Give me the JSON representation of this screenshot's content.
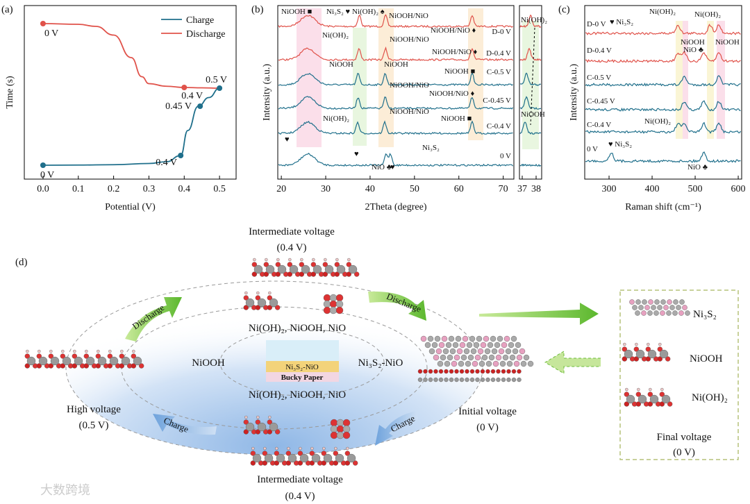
{
  "chart_data": [
    {
      "type": "line",
      "panel_label": "(a)",
      "x_label": "Potential (V)",
      "y_label": "Time (s)",
      "xlim": [
        -0.053,
        0.547
      ],
      "xticks": [
        {
          "value": 0,
          "label": "0.0"
        },
        0.1,
        0.2,
        0.3,
        0.4,
        0.5
      ],
      "ylim": [
        0,
        10
      ],
      "legend": "upper right",
      "series": [
        {
          "name": "Charge",
          "color": "#1f6f8b",
          "x": [
            0,
            0.1,
            0.2,
            0.3,
            0.35,
            0.39,
            0.41,
            0.44,
            0.47,
            0.5
          ],
          "values": [
            0.8,
            0.81,
            0.83,
            0.9,
            1.0,
            1.36,
            2.8,
            4.2,
            4.7,
            5.24
          ]
        },
        {
          "name": "Discharge",
          "color": "#e0524a",
          "x": [
            0,
            0.1,
            0.15,
            0.2,
            0.25,
            0.28,
            0.3,
            0.35,
            0.4,
            0.45,
            0.5
          ],
          "values": [
            8.96,
            8.92,
            8.8,
            8.3,
            7.0,
            5.9,
            5.5,
            5.35,
            5.28,
            5.26,
            5.24
          ]
        }
      ],
      "annotations": [
        {
          "text": "0 V",
          "x": 0,
          "y": 8.96,
          "series": 1
        },
        {
          "text": "0.4 V",
          "x": 0.4,
          "y": 5.28,
          "series": 1
        },
        {
          "text": "0.5 V",
          "x": 0.5,
          "y": 5.24,
          "series": 0
        },
        {
          "text": "0.45 V",
          "x": 0.445,
          "y": 4.2,
          "series": 0
        },
        {
          "text": "0.4 V",
          "x": 0.39,
          "y": 1.36,
          "series": 0
        },
        {
          "text": "0 V",
          "x": 0,
          "y": 0.8,
          "series": 0
        }
      ]
    },
    {
      "type": "spectra",
      "panel_label": "(b)",
      "x_label": "2Theta (degree)",
      "y_label": "Intensity (a.u.)",
      "xlim": [
        19.2,
        72.4
      ],
      "xticks": [
        20,
        30,
        40,
        50,
        60,
        70
      ],
      "inset_xlim": [
        36.8,
        38.4
      ],
      "inset_xticks": [
        37,
        38
      ],
      "traces": [
        {
          "name": "D-0 V",
          "color": "#e0524a",
          "peaks": [
            26,
            37.6,
            43.5,
            63
          ]
        },
        {
          "name": "D-0.4 V",
          "color": "#e0524a",
          "peaks": [
            26,
            37.5,
            43.5,
            63
          ]
        },
        {
          "name": "C-0.5 V",
          "color": "#1f6f8b",
          "peaks": [
            26,
            37.3,
            43.4,
            63
          ]
        },
        {
          "name": "C-0.45 V",
          "color": "#1f6f8b",
          "peaks": [
            26,
            37.3,
            43.4,
            63
          ]
        },
        {
          "name": "C-0.4 V",
          "color": "#1f6f8b",
          "peaks": [
            26,
            37.2,
            43.3,
            63
          ]
        },
        {
          "name": "0 V",
          "color": "#1f6f8b",
          "peaks": [
            26,
            43.6,
            44.6
          ]
        }
      ],
      "annotations": [
        "NiOOH ■",
        "Ni₃S₂ ♥",
        "Ni(OH)₂ ♠",
        "NiOOH/NiO",
        "Ni(OH)₂",
        "NiOOH/NiO",
        "NiOOH/NiO ♦",
        "NiOOH/NiO ♦",
        "NiOOH",
        "NiOOH",
        "NiOOH ■",
        "NiOOH/NiO",
        "NiOOH/NiO ♦",
        "NiOOH/NiO",
        "Ni(OH)₂",
        "NiOOH ■",
        "NiO ♣",
        "Ni₃S₂",
        "Ni(OH)₂",
        "NiOOH",
        "♥",
        "♥",
        "♥"
      ]
    },
    {
      "type": "spectra",
      "panel_label": "(c)",
      "x_label": "Raman shift (cm⁻¹)",
      "y_label": "Intensity (a.u.)",
      "xlim": [
        243.5,
        608
      ],
      "xticks": [
        300,
        400,
        500,
        600
      ],
      "traces": [
        {
          "name": "D-0 V",
          "color": "#e0524a",
          "peaks": [
            460,
            535,
            555
          ]
        },
        {
          "name": "D-0.4 V",
          "color": "#e0524a",
          "peaks": [
            460,
            475,
            520,
            555
          ]
        },
        {
          "name": "C-0.5 V",
          "color": "#1f6f8b",
          "peaks": [
            475,
            555
          ]
        },
        {
          "name": "C-0.45 V",
          "color": "#1f6f8b",
          "peaks": [
            475,
            520,
            555
          ]
        },
        {
          "name": "C-0.4 V",
          "color": "#1f6f8b",
          "peaks": [
            460,
            475,
            520,
            555
          ]
        },
        {
          "name": "0 V",
          "color": "#1f6f8b",
          "peaks": [
            305,
            520
          ]
        }
      ],
      "annotations": [
        "♥ Ni₃S₂",
        "Ni(OH)₂",
        "Ni(OH)₂",
        "NiOOH",
        "NiOOH",
        "NiO ♣",
        "Ni(OH)₂",
        "♥ Ni₃S₂",
        "NiO ♣"
      ]
    }
  ],
  "diagram": {
    "panel_label": "(d)",
    "top_state": {
      "title": "Intermediate voltage",
      "voltage": "(0.4 V)"
    },
    "bottom_state": {
      "title": "Intermediate voltage",
      "voltage": "(0.4 V)"
    },
    "high_state": {
      "title": "High voltage",
      "voltage": "(0.5 V)"
    },
    "initial_state": {
      "title": "Initial voltage",
      "voltage": "(0 V)"
    },
    "final_state": {
      "title": "Final voltage",
      "voltage": "(0 V)",
      "phases": [
        "Ni₃S₂",
        "NiOOH",
        "Ni(OH)₂"
      ]
    },
    "arrows": [
      "Discharge",
      "Discharge",
      "Charge",
      "Charge"
    ],
    "phases_top": "Ni(OH)₂, NiOOH, NiO",
    "phases_bottom": "Ni(OH)₂, NiOOH, NiO",
    "left_phase": "NiOOH",
    "right_phase": "Ni₃S₂-NiO",
    "electrode": {
      "material": "Ni₃S₂-NiO",
      "substrate": "Bucky Paper"
    },
    "watermark": "大数跨境"
  }
}
